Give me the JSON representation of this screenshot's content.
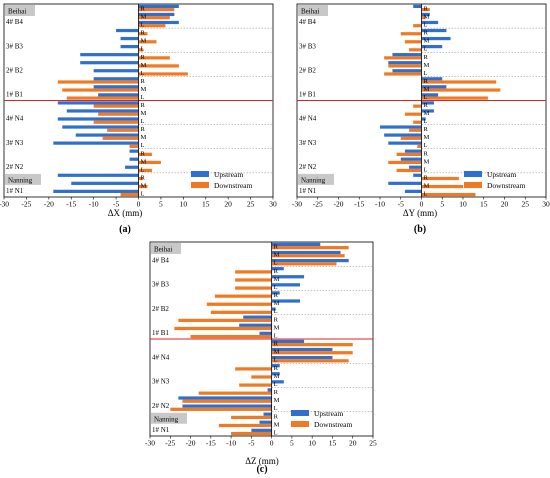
{
  "figure": {
    "level_labels": [
      "R",
      "M",
      "L"
    ],
    "groups_top_to_bottom": [
      "4# B4",
      "3# B3",
      "2# B2",
      "1# B1",
      "4# N4",
      "3# N3",
      "2# N2",
      "1# N1"
    ],
    "city_top": "Beihai",
    "city_bottom": "Nanning",
    "colors": {
      "upstream": "#2f6fd0",
      "downstream": "#f07a22",
      "divider": "#e02020",
      "grid": "#888888",
      "city_bg": "#c8c8c8"
    }
  },
  "chart_data": [
    {
      "type": "bar",
      "orientation": "horizontal",
      "panel_label": "(a)",
      "xlabel": "ΔX (mm)",
      "xlim": [
        -30,
        30
      ],
      "xticks": [
        -30,
        -25,
        -20,
        -15,
        -10,
        -5,
        0,
        5,
        10,
        15,
        20,
        25,
        30
      ],
      "legend": {
        "position": "bottom-right",
        "entries": [
          "Upstream",
          "Downstream"
        ]
      },
      "categories": [
        "4# B4 R",
        "4# B4 M",
        "4# B4 L",
        "3# B3 R",
        "3# B3 M",
        "3# B3 L",
        "2# B2 R",
        "2# B2 M",
        "2# B2 L",
        "1# B1 R",
        "1# B1 M",
        "1# B1 L",
        "4# N4 R",
        "4# N4 M",
        "4# N4 L",
        "3# N3 R",
        "3# N3 M",
        "3# N3 L",
        "2# N2 R",
        "2# N2 M",
        "2# N2 L",
        "1# N1 R",
        "1# N1 M",
        "1# N1 L"
      ],
      "series": [
        {
          "name": "Upstream",
          "values": [
            9,
            8,
            9,
            -5,
            -4,
            -4,
            -13,
            -13,
            -10,
            -10,
            -10,
            -9,
            -18,
            -16,
            -18,
            -17,
            -14,
            -19,
            -2,
            -2,
            -3,
            -18,
            -15,
            -19
          ]
        },
        {
          "name": "Downstream",
          "values": [
            8,
            7,
            6,
            2,
            4,
            1,
            7,
            9,
            11,
            -18,
            -17,
            -16,
            -10,
            -9,
            -10,
            -7,
            -8,
            -2,
            3,
            5,
            3,
            1,
            2,
            -4
          ]
        }
      ]
    },
    {
      "type": "bar",
      "orientation": "horizontal",
      "panel_label": "(b)",
      "xlabel": "ΔY (mm)",
      "xlim": [
        -30,
        30
      ],
      "xticks": [
        -30,
        -25,
        -20,
        -15,
        -10,
        -5,
        0,
        5,
        10,
        15,
        20,
        25,
        30
      ],
      "legend": {
        "position": "bottom-right",
        "entries": [
          "Upstream",
          "Downstream"
        ]
      },
      "categories": [
        "4# B4 R",
        "4# B4 M",
        "4# B4 L",
        "3# B3 R",
        "3# B3 M",
        "3# B3 L",
        "2# B2 R",
        "2# B2 M",
        "2# B2 L",
        "1# B1 R",
        "1# B1 M",
        "1# B1 L",
        "4# N4 R",
        "4# N4 M",
        "4# N4 L",
        "3# N3 R",
        "3# N3 M",
        "3# N3 L",
        "2# N2 R",
        "2# N2 M",
        "2# N2 L",
        "1# N1 R",
        "1# N1 M",
        "1# N1 L"
      ],
      "series": [
        {
          "name": "Upstream",
          "values": [
            -2,
            2,
            4,
            6,
            7,
            5,
            -7,
            -8,
            -7,
            5,
            6,
            4,
            3,
            3,
            1,
            -10,
            -9,
            -8,
            -4,
            -5,
            -3,
            -2,
            -8,
            -4
          ]
        },
        {
          "name": "Downstream",
          "values": [
            2,
            1,
            -2,
            -5,
            -4,
            -3,
            -9,
            -8,
            -9,
            18,
            19,
            16,
            -2,
            -4,
            -2,
            -3,
            -5,
            -1,
            -6,
            -8,
            -6,
            9,
            10,
            13
          ]
        }
      ]
    },
    {
      "type": "bar",
      "orientation": "horizontal",
      "panel_label": "(c)",
      "xlabel": "ΔZ (mm)",
      "xlim": [
        -30,
        25
      ],
      "xticks": [
        -30,
        -25,
        -20,
        -15,
        -10,
        -5,
        0,
        5,
        10,
        15,
        20,
        25
      ],
      "legend": {
        "position": "bottom-right",
        "entries": [
          "Upstream",
          "Downstream"
        ]
      },
      "categories": [
        "4# B4 R",
        "4# B4 M",
        "4# B4 L",
        "3# B3 R",
        "3# B3 M",
        "3# B3 L",
        "2# B2 R",
        "2# B2 M",
        "2# B2 L",
        "1# B1 R",
        "1# B1 M",
        "1# B1 L",
        "4# N4 R",
        "4# N4 M",
        "4# N4 L",
        "3# N3 R",
        "3# N3 M",
        "3# N3 L",
        "2# N2 R",
        "2# N2 M",
        "2# N2 L",
        "1# N1 R",
        "1# N1 M",
        "1# N1 L"
      ],
      "series": [
        {
          "name": "Upstream",
          "values": [
            12,
            17,
            19,
            3,
            8,
            7,
            2,
            7,
            1,
            -7,
            -8,
            -3,
            8,
            15,
            15,
            2,
            2,
            3,
            -1,
            -23,
            -22,
            -2,
            -3,
            -5
          ]
        },
        {
          "name": "Downstream",
          "values": [
            19,
            18,
            16,
            -9,
            -9,
            -9,
            -14,
            -16,
            -15,
            -23,
            -24,
            -20,
            20,
            20,
            19,
            -9,
            -5,
            -8,
            -18,
            -22,
            -25,
            -10,
            -13,
            -10
          ]
        }
      ]
    }
  ]
}
